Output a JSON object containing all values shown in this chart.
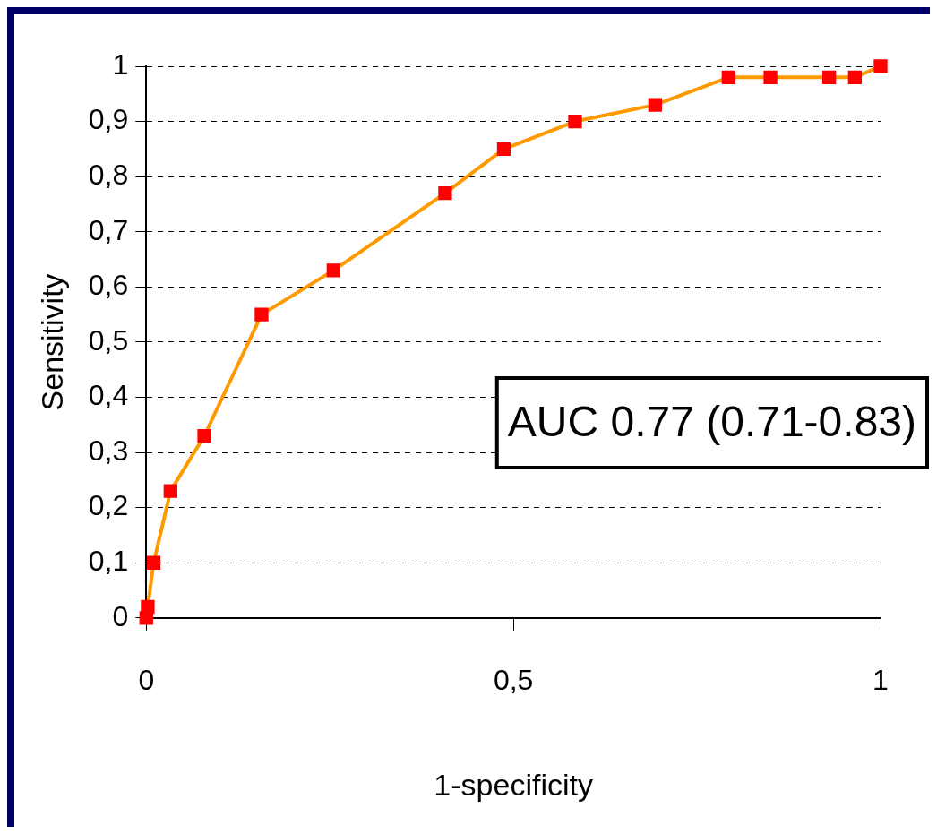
{
  "chart_data": {
    "type": "line",
    "xlabel": "1-specificity",
    "ylabel": "Sensitivity",
    "annotations": [
      "AUC 0.77 (0.71-0.83)"
    ],
    "series": [
      {
        "color": "#ff9900",
        "colors": [
          "#ff0000",
          "#ff0000",
          "#ff0000",
          "#ff0000",
          "#ff0000",
          "#ff0000",
          "#ff0000",
          "#ff0000",
          "#ff0000",
          "#ff0000",
          "#ff0000",
          "#ff0000",
          "#ff0000",
          "#ff0000",
          "#ff0000",
          "#ff0000"
        ],
        "x": [
          0,
          0.002,
          0.01,
          0.033,
          0.079,
          0.157,
          0.255,
          0.407,
          0.487,
          0.584,
          0.693,
          0.793,
          0.85,
          0.93,
          0.965,
          1
        ],
        "values": [
          0,
          0.02,
          0.1,
          0.23,
          0.33,
          0.55,
          0.63,
          0.77,
          0.85,
          0.9,
          0.93,
          0.98,
          0.98,
          0.98,
          0.98,
          1
        ]
      }
    ],
    "xlim": [
      0,
      1
    ],
    "xticks": [
      0,
      {
        "value": 0.5,
        "label": "0,5"
      },
      1
    ],
    "ylim": [
      0,
      1
    ],
    "yticks": [
      0,
      {
        "value": 0.1,
        "label": "0,1"
      },
      {
        "value": 0.2,
        "label": "0,2"
      },
      {
        "value": 0.3,
        "label": "0,3"
      },
      {
        "value": 0.4,
        "label": "0,4"
      },
      {
        "value": 0.5,
        "label": "0,5"
      },
      {
        "value": 0.6,
        "label": "0,6"
      },
      {
        "value": 0.7,
        "label": "0,7"
      },
      {
        "value": 0.8,
        "label": "0,8"
      },
      {
        "value": 0.9,
        "label": "0,9"
      },
      1
    ],
    "grid": "y",
    "legend": false,
    "marker": "square",
    "line_style": "solid"
  }
}
